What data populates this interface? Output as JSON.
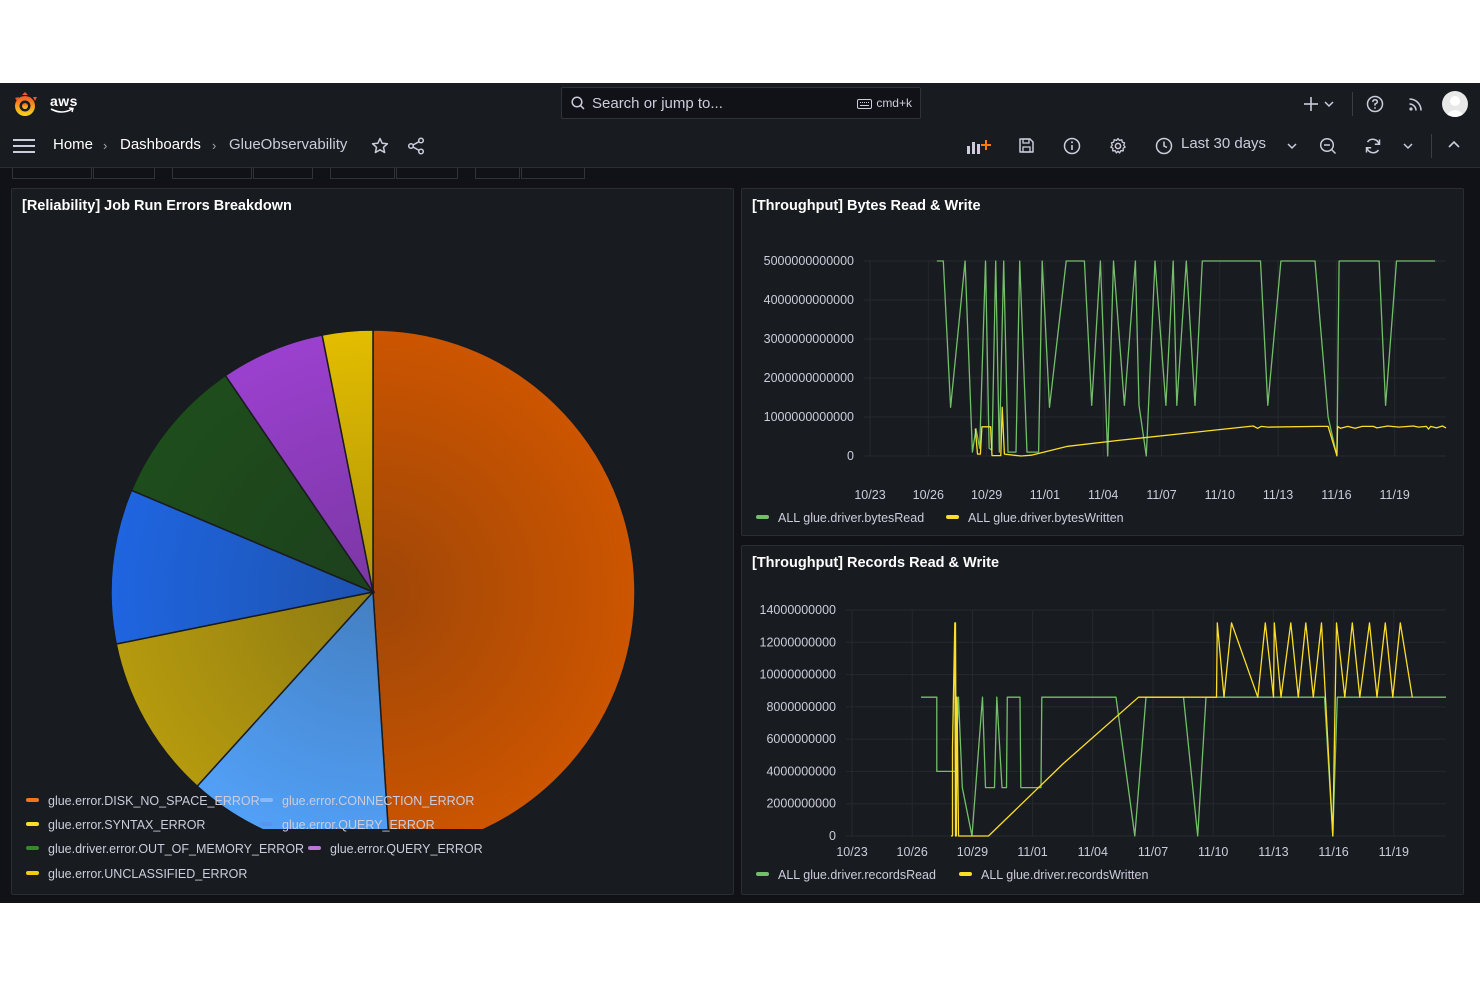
{
  "header": {
    "brand": "aws",
    "search_placeholder": "Search or jump to...",
    "search_shortcut": "cmd+k"
  },
  "breadcrumb": [
    "Home",
    "Dashboards",
    "GlueObservability"
  ],
  "toolbar": {
    "time_range": "Last 30 days"
  },
  "colors": {
    "green": "#73bf69",
    "yellow": "#fade2a",
    "orange": "#ff780a",
    "background": "#111217",
    "panel": "#181b1f"
  },
  "panels": {
    "errors": {
      "title": "[Reliability] Job Run Errors Breakdown",
      "legend": [
        {
          "label": "glue.error.DISK_NO_SPACE_ERROR",
          "color": "#f2741e"
        },
        {
          "label": "glue.error.CONNECTION_ERROR",
          "color": "#8ab8ff"
        },
        {
          "label": "glue.error.SYNTAX_ERROR",
          "color": "#fade2a"
        },
        {
          "label": "glue.error.QUERY_ERROR",
          "color": "#5794f2"
        },
        {
          "label": "glue.driver.error.OUT_OF_MEMORY_ERROR",
          "color": "#37872d"
        },
        {
          "label": "glue.error.QUERY_ERROR",
          "color": "#b877d9"
        },
        {
          "label": "glue.error.UNCLASSIFIED_ERROR",
          "color": "#f2cc0c"
        }
      ]
    },
    "bytes": {
      "title": "[Throughput] Bytes Read & Write",
      "legend": [
        {
          "label": "ALL glue.driver.bytesRead",
          "color": "#73bf69"
        },
        {
          "label": "ALL glue.driver.bytesWritten",
          "color": "#fade2a"
        }
      ]
    },
    "records": {
      "title": "[Throughput] Records Read & Write",
      "legend": [
        {
          "label": "ALL glue.driver.recordsRead",
          "color": "#73bf69"
        },
        {
          "label": "ALL glue.driver.recordsWritten",
          "color": "#fade2a"
        }
      ]
    }
  },
  "chart_data": [
    {
      "type": "pie",
      "title": "[Reliability] Job Run Errors Breakdown",
      "slices": [
        {
          "name": "glue.error.DISK_NO_SPACE_ERROR",
          "value": 50.4,
          "color": "#cc5500"
        },
        {
          "name": "glue.error.CONNECTION_ERROR",
          "value": 13.1,
          "color": "#52a0f7"
        },
        {
          "name": "glue.error.SYNTAX_ERROR",
          "value": 10.4,
          "color": "#b59a0e"
        },
        {
          "name": "glue.error.QUERY_ERROR",
          "value": 9.8,
          "color": "#1f65e0"
        },
        {
          "name": "glue.driver.error.OUT_OF_MEMORY_ERROR",
          "value": 9.4,
          "color": "#1e4d1c"
        },
        {
          "name": "glue.error.QUERY_ERROR",
          "value": 6.6,
          "color": "#9b40cf"
        },
        {
          "name": "glue.error.UNCLASSIFIED_ERROR",
          "value": 3.2,
          "color": "#e3bd00"
        }
      ]
    },
    {
      "type": "line",
      "title": "[Throughput] Bytes Read & Write",
      "x_ticks": [
        "10/23",
        "10/26",
        "10/29",
        "11/01",
        "11/04",
        "11/07",
        "11/10",
        "11/13",
        "11/16",
        "11/19"
      ],
      "y_ticks": [
        "5000000000000",
        "4000000000000",
        "3000000000000",
        "2000000000000",
        "1000000000000",
        "0"
      ],
      "ylim": [
        0,
        5000000000000
      ],
      "series": [
        {
          "name": "ALL glue.driver.bytesRead",
          "color": "#73bf69",
          "points": [
            [
              10.0,
              5000
            ],
            [
              10.9,
              5000
            ],
            [
              11.9,
              1250
            ],
            [
              13.9,
              5000
            ],
            [
              14.9,
              100
            ],
            [
              15.4,
              700
            ],
            [
              15.9,
              200
            ],
            [
              16.7,
              5000
            ],
            [
              17.2,
              200
            ],
            [
              17.6,
              150
            ],
            [
              18.1,
              5000
            ],
            [
              18.6,
              100
            ],
            [
              19.2,
              5000
            ],
            [
              19.8,
              100
            ],
            [
              20.2,
              100
            ],
            [
              20.9,
              100
            ],
            [
              21.4,
              5000
            ],
            [
              22.4,
              100
            ],
            [
              24.0,
              100
            ],
            [
              24.5,
              5000
            ],
            [
              25.5,
              1250
            ],
            [
              27.8,
              5000
            ],
            [
              29.6,
              5000
            ],
            [
              30.3,
              5000
            ],
            [
              31.3,
              1300
            ],
            [
              32.5,
              5000
            ],
            [
              33.5,
              0
            ],
            [
              34.3,
              5000
            ],
            [
              35.8,
              1300
            ],
            [
              37.3,
              5000
            ],
            [
              37.8,
              1300
            ],
            [
              38.8,
              0
            ],
            [
              40.0,
              5000
            ],
            [
              41.5,
              1300
            ],
            [
              42.5,
              5000
            ],
            [
              43.0,
              1300
            ],
            [
              44.3,
              5000
            ],
            [
              45.5,
              1300
            ],
            [
              46.5,
              5000
            ],
            [
              50.5,
              5000
            ],
            [
              51.0,
              5000
            ],
            [
              54.5,
              5000
            ],
            [
              55.5,
              1300
            ],
            [
              57.3,
              5000
            ],
            [
              61.3,
              5000
            ],
            [
              62.0,
              5000
            ],
            [
              63.8,
              1000
            ],
            [
              65.0,
              0
            ],
            [
              65.3,
              5000
            ],
            [
              70.0,
              5000
            ],
            [
              70.8,
              5000
            ],
            [
              71.7,
              1300
            ],
            [
              73.2,
              5000
            ],
            [
              76.5,
              5000
            ],
            [
              78.5,
              5000
            ]
          ]
        },
        {
          "name": "ALL glue.driver.bytesWritten",
          "color": "#fade2a",
          "points": [
            [
              15.3,
              700
            ],
            [
              15.6,
              50
            ],
            [
              16.0,
              50
            ],
            [
              16.2,
              750
            ],
            [
              17.4,
              750
            ],
            [
              17.6,
              10
            ],
            [
              18.8,
              10
            ],
            [
              19.0,
              1250
            ],
            [
              19.3,
              50
            ],
            [
              21.6,
              0
            ],
            [
              23.0,
              20
            ],
            [
              28.0,
              250
            ],
            [
              35.0,
              400
            ],
            [
              45.0,
              600
            ],
            [
              53.5,
              770
            ],
            [
              54.1,
              710
            ],
            [
              54.6,
              760
            ],
            [
              55.5,
              740
            ],
            [
              62.5,
              760
            ],
            [
              63.8,
              760
            ],
            [
              65.0,
              10
            ],
            [
              65.1,
              760
            ],
            [
              65.5,
              710
            ],
            [
              66.5,
              760
            ],
            [
              67.5,
              710
            ],
            [
              68.5,
              760
            ],
            [
              70.0,
              760
            ],
            [
              70.5,
              720
            ],
            [
              72.0,
              770
            ],
            [
              73.5,
              740
            ],
            [
              75.5,
              770
            ],
            [
              76.2,
              740
            ],
            [
              77.3,
              760
            ],
            [
              77.6,
              690
            ],
            [
              77.9,
              760
            ],
            [
              78.7,
              720
            ],
            [
              79.5,
              770
            ],
            [
              80.0,
              720
            ]
          ]
        }
      ]
    },
    {
      "type": "line",
      "title": "[Throughput] Records Read & Write",
      "x_ticks": [
        "10/23",
        "10/26",
        "10/29",
        "11/01",
        "11/04",
        "11/07",
        "11/10",
        "11/13",
        "11/16",
        "11/19"
      ],
      "y_ticks": [
        "14000000000",
        "12000000000",
        "10000000000",
        "8000000000",
        "6000000000",
        "4000000000",
        "2000000000",
        "0"
      ],
      "ylim": [
        0,
        14000000000
      ],
      "series": [
        {
          "name": "ALL glue.driver.recordsRead",
          "color": "#73bf69",
          "points": [
            [
              10.0,
              8600
            ],
            [
              12.1,
              8600
            ],
            [
              12.1,
              4000
            ],
            [
              14.6,
              4000
            ],
            [
              15.0,
              8600
            ],
            [
              15.5,
              3000
            ],
            [
              16.8,
              0
            ],
            [
              18.2,
              8600
            ],
            [
              18.6,
              3000
            ],
            [
              19.8,
              3000
            ],
            [
              20.1,
              8600
            ],
            [
              20.8,
              3000
            ],
            [
              21.4,
              3000
            ],
            [
              21.5,
              8600
            ],
            [
              23.2,
              8600
            ],
            [
              23.3,
              3000
            ],
            [
              26.0,
              3000
            ],
            [
              26.1,
              8600
            ],
            [
              35.0,
              8600
            ],
            [
              36.0,
              8600
            ],
            [
              38.5,
              0
            ],
            [
              40.0,
              8600
            ],
            [
              43.2,
              8600
            ],
            [
              45.0,
              8600
            ],
            [
              46.9,
              0
            ],
            [
              48.0,
              8600
            ],
            [
              60.0,
              8600
            ],
            [
              63.8,
              8600
            ],
            [
              64.9,
              0
            ],
            [
              65.5,
              8600
            ],
            [
              80.0,
              8600
            ]
          ]
        },
        {
          "name": "ALL glue.driver.recordsWritten",
          "color": "#fade2a",
          "points": [
            [
              14.0,
              0
            ],
            [
              14.2,
              10
            ],
            [
              14.2,
              5500
            ],
            [
              14.5,
              13200
            ],
            [
              14.6,
              0
            ],
            [
              14.6,
              13200
            ],
            [
              14.7,
              0
            ],
            [
              14.8,
              8600
            ],
            [
              15.0,
              0
            ],
            [
              17.0,
              0
            ],
            [
              19.0,
              0
            ],
            [
              29.0,
              4500
            ],
            [
              39.0,
              8600
            ],
            [
              49.4,
              8600
            ],
            [
              49.5,
              13200
            ],
            [
              50.4,
              8600
            ],
            [
              51.4,
              13200
            ],
            [
              54.9,
              8600
            ],
            [
              55.9,
              13200
            ],
            [
              57.0,
              8600
            ],
            [
              57.1,
              13200
            ],
            [
              58.0,
              8600
            ],
            [
              59.3,
              13200
            ],
            [
              60.3,
              8600
            ],
            [
              61.3,
              13200
            ],
            [
              62.3,
              8600
            ],
            [
              63.4,
              13200
            ],
            [
              64.9,
              0
            ],
            [
              65.4,
              13200
            ],
            [
              66.5,
              8600
            ],
            [
              67.5,
              13200
            ],
            [
              68.5,
              8600
            ],
            [
              69.8,
              13200
            ],
            [
              70.8,
              8600
            ],
            [
              71.9,
              13200
            ],
            [
              72.9,
              8600
            ],
            [
              73.9,
              13200
            ],
            [
              75.5,
              8600
            ]
          ]
        }
      ]
    }
  ]
}
